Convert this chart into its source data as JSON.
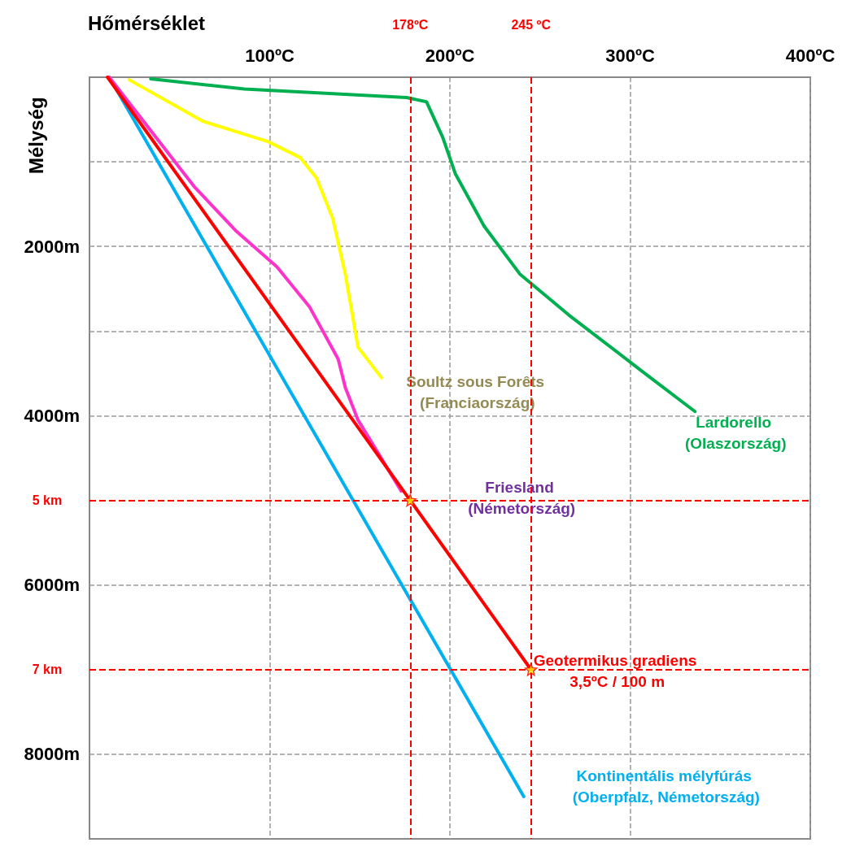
{
  "chart_data": {
    "type": "line",
    "xlabel": "Hőmérséklet",
    "ylabel": "Mélység",
    "xlim": [
      0,
      400
    ],
    "xticks": [
      {
        "value": 100,
        "label": "100ºC"
      },
      {
        "value": 200,
        "label": "200ºC"
      },
      {
        "value": 300,
        "label": "300ºC"
      },
      {
        "value": 400,
        "label": "400ºC"
      }
    ],
    "ylim": [
      9000,
      0
    ],
    "yticks": [
      {
        "value": 1000,
        "label": null
      },
      {
        "value": 2000,
        "label": "2000m"
      },
      {
        "value": 3000,
        "label": null
      },
      {
        "value": 4000,
        "label": "4000m"
      },
      {
        "value": 6000,
        "label": "6000m"
      },
      {
        "value": 8000,
        "label": "8000m"
      }
    ],
    "grid": true,
    "legend": false,
    "marker": "none",
    "line_style": "solid",
    "ref_lines": [
      {
        "axis": "x",
        "value": 178,
        "label": "178ºC",
        "color": "#ff0000",
        "line_style": "dashed"
      },
      {
        "axis": "x",
        "value": 245,
        "label": "245 ºC",
        "color": "#ff0000",
        "line_style": "dashed"
      },
      {
        "axis": "y",
        "value": 5000,
        "label": "5 km",
        "color": "#ff0000",
        "line_style": "dashed"
      },
      {
        "axis": "y",
        "value": 7000,
        "label": "7 km",
        "color": "#ff0000",
        "line_style": "dashed"
      }
    ],
    "series": [
      {
        "name": "Kontinentális mélyfúrás (Oberpfalz, Németország)",
        "color": "#00b0f0",
        "x": [
          11,
          241
        ],
        "values": [
          0,
          8500
        ]
      },
      {
        "name": "Friesland (Németország)",
        "color": "#ff33cc",
        "x": [
          11,
          58,
          81,
          104,
          122,
          138,
          142,
          149,
          173
        ],
        "values": [
          0,
          1290,
          1810,
          2240,
          2710,
          3330,
          3670,
          4050,
          4890
        ]
      },
      {
        "name": "Soultz sous Forêts (Franciaország)",
        "color": "#ffff00",
        "x": [
          22,
          63,
          99,
          117,
          126,
          135,
          142,
          149,
          162
        ],
        "values": [
          30,
          520,
          760,
          950,
          1190,
          1670,
          2330,
          3190,
          3550
        ]
      },
      {
        "name": "Lardorello (Olaszország)",
        "color": "#00b050",
        "x": [
          34,
          86,
          176,
          187,
          196,
          203,
          219,
          239,
          266,
          307,
          336
        ],
        "values": [
          20,
          140,
          240,
          290,
          710,
          1140,
          1760,
          2330,
          2810,
          3480,
          3950
        ]
      },
      {
        "name": "Geotermikus gradiens 3,5ºC / 100 m",
        "color": "#ff0000",
        "x": [
          10,
          178,
          245
        ],
        "values": [
          0,
          5000,
          7000
        ]
      },
      {
        "type": "scatter",
        "color": "#ffff00",
        "marker": "star",
        "x": [
          178,
          245
        ],
        "values": [
          5000,
          7000
        ]
      }
    ]
  }
}
